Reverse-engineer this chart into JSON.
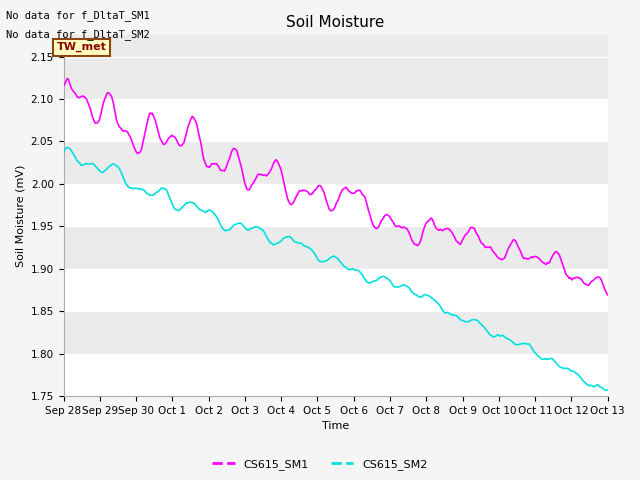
{
  "title": "Soil Moisture",
  "ylabel": "Soil Moisture (mV)",
  "xlabel": "Time",
  "ylim": [
    1.75,
    2.175
  ],
  "yticks": [
    1.75,
    1.8,
    1.85,
    1.9,
    1.95,
    2.0,
    2.05,
    2.1,
    2.15
  ],
  "line1_color": "#ff00ff",
  "line2_color": "#00e0e0",
  "line1_label": "CS615_SM1",
  "line2_label": "CS615_SM2",
  "line_width": 1.2,
  "plot_bg_color": "#ebebeb",
  "fig_bg_color": "#f5f5f5",
  "grid_color_light": "#ffffff",
  "text_no_data1": "No data for f_DltaT_SM1",
  "text_no_data2": "No data for f_DltaT_SM2",
  "box_label": "TW_met",
  "box_facecolor": "#ffffc0",
  "box_edgecolor": "#8b4513",
  "box_textcolor": "#8b0000",
  "title_fontsize": 11,
  "label_fontsize": 8,
  "tick_fontsize": 7.5,
  "legend_fontsize": 8,
  "x_tick_labels": [
    "Sep 28",
    "Sep 29",
    "Sep 30",
    "Oct 1",
    "Oct 2",
    "Oct 3",
    "Oct 4",
    "Oct 5",
    "Oct 6",
    "Oct 7",
    "Oct 8",
    "Oct 9",
    "Oct 10",
    "Oct 11",
    "Oct 12",
    "Oct 13"
  ],
  "num_points": 3000
}
